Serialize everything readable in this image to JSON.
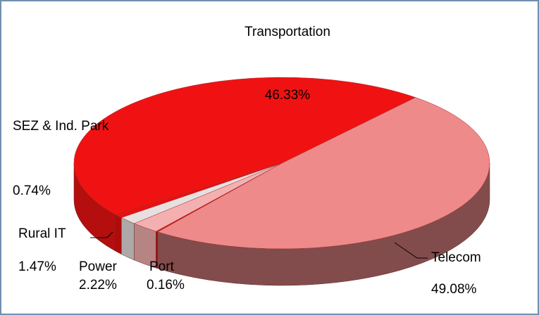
{
  "chart_data": {
    "type": "pie3d",
    "categories": [
      "Telecom",
      "Port",
      "Power",
      "Rural IT",
      "SEZ & Ind. Park",
      "Transportation"
    ],
    "values": [
      49.08,
      0.16,
      2.22,
      1.47,
      0.74,
      46.33
    ],
    "value_labels": [
      "49.08%",
      "0.16%",
      "2.22%",
      "1.47%",
      "0.74%",
      "46.33%"
    ],
    "colors": [
      "#ef8a8a",
      "#e01010",
      "#f4b0b0",
      "#e8e0e0",
      "#e81010",
      "#f01212"
    ]
  }
}
